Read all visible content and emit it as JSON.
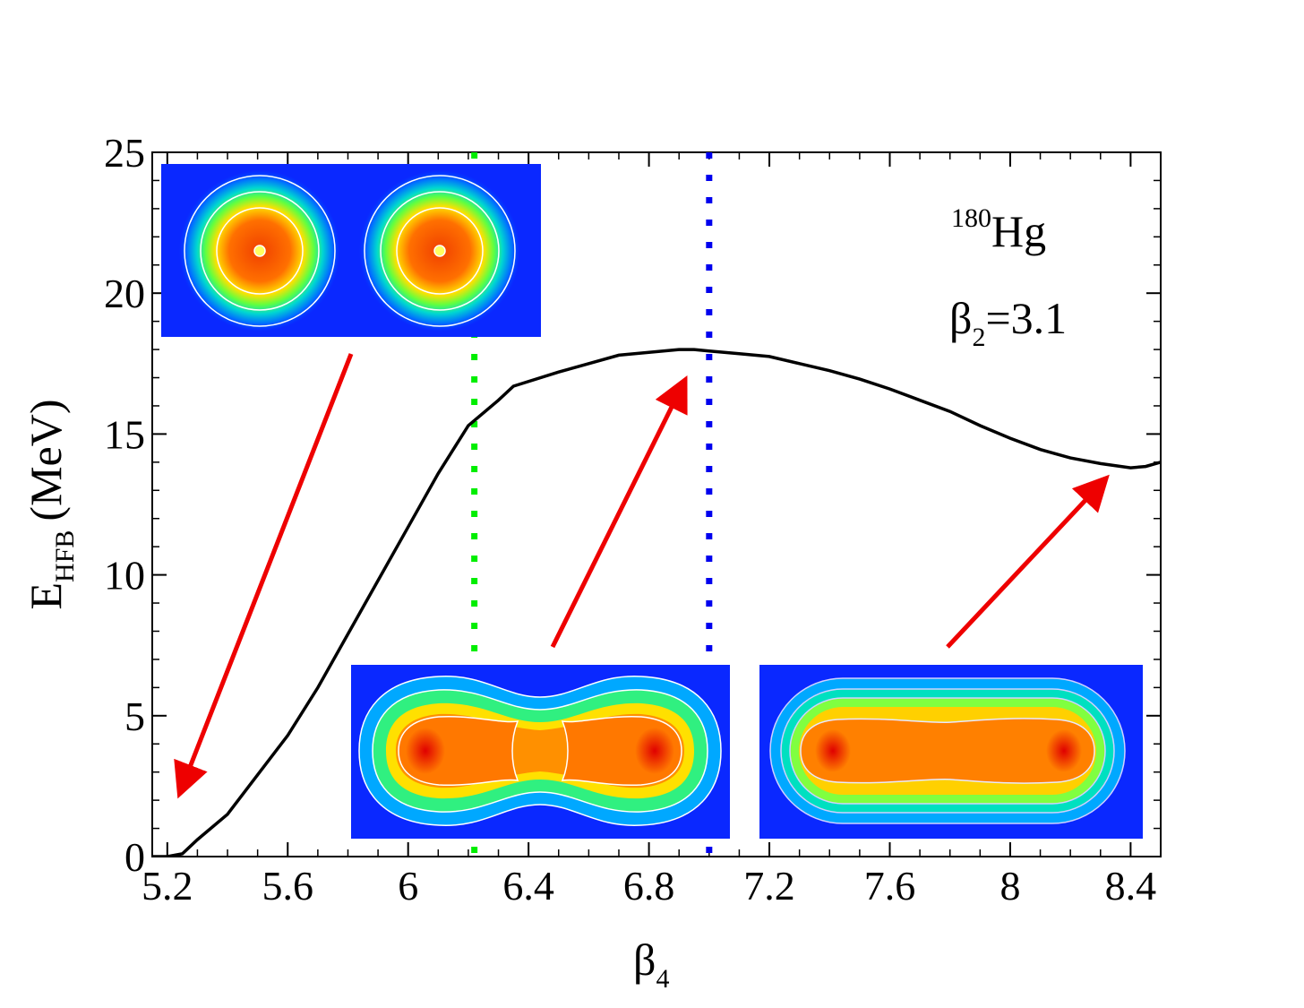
{
  "chart_data": {
    "type": "line",
    "xlabel": "β",
    "xlabel_sub": "4",
    "ylabel": "E",
    "ylabel_sub": "HFB",
    "ylabel_unit": "(MeV)",
    "xlim": [
      5.15,
      8.5
    ],
    "ylim": [
      0,
      25
    ],
    "x_ticks": [
      5.2,
      5.6,
      6.0,
      6.4,
      6.8,
      7.2,
      7.6,
      8.0,
      8.4
    ],
    "x_tick_labels": [
      "5.2",
      "5.6",
      "6",
      "6.4",
      "6.8",
      "7.2",
      "7.6",
      "8",
      "8.4"
    ],
    "y_ticks": [
      0,
      5,
      10,
      15,
      20,
      25
    ],
    "y_tick_labels": [
      "0",
      "5",
      "10",
      "15",
      "20",
      "25"
    ],
    "grid": false,
    "series": [
      {
        "color": "#000000",
        "x": [
          5.15,
          5.2,
          5.25,
          5.3,
          5.4,
          5.5,
          5.6,
          5.7,
          5.8,
          5.9,
          6.0,
          6.1,
          6.2,
          6.3,
          6.35,
          6.5,
          6.6,
          6.7,
          6.8,
          6.9,
          6.95,
          7.0,
          7.1,
          7.2,
          7.3,
          7.4,
          7.5,
          7.6,
          7.7,
          7.8,
          7.9,
          8.0,
          8.1,
          8.2,
          8.3,
          8.4,
          8.45,
          8.5
        ],
        "y": [
          0.0,
          0.0,
          0.1,
          0.6,
          1.5,
          2.9,
          4.3,
          6.0,
          7.9,
          9.8,
          11.7,
          13.6,
          15.3,
          16.2,
          16.7,
          17.2,
          17.5,
          17.8,
          17.9,
          18.0,
          18.0,
          17.95,
          17.85,
          17.75,
          17.5,
          17.25,
          16.95,
          16.6,
          16.2,
          15.8,
          15.3,
          14.85,
          14.45,
          14.15,
          13.95,
          13.8,
          13.85,
          14.0
        ]
      }
    ],
    "vlines": [
      {
        "x": 6.22,
        "color": "#00ee00",
        "style": "dotted"
      },
      {
        "x": 7.0,
        "color": "#0000ee",
        "style": "dotted"
      }
    ],
    "annotation": {
      "nucleus_mass": "180",
      "nucleus_symbol": "Hg",
      "beta_symbol": "β",
      "beta_sub": "2",
      "beta_value": "=3.1"
    },
    "insets": [
      {
        "name": "two-spheres",
        "shape": "two-fragments"
      },
      {
        "name": "necked",
        "shape": "necked"
      },
      {
        "name": "elongated",
        "shape": "elongated"
      }
    ],
    "arrow_color": "#ee0000"
  }
}
